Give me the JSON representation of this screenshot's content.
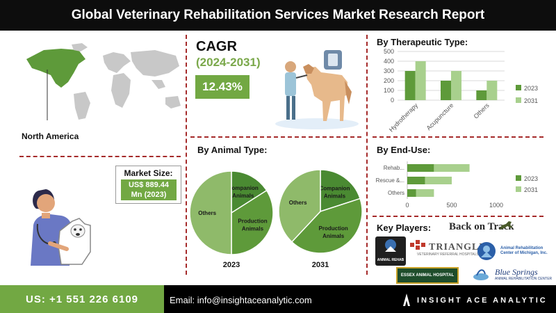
{
  "header": {
    "title": "Global Veterinary Rehabilitation Services Market Research Report"
  },
  "region": {
    "label": "North America"
  },
  "cagr": {
    "label": "CAGR",
    "years": "(2024-2031)",
    "value": "12.43%"
  },
  "market_size": {
    "label": "Market Size:",
    "value_line1": "US$ 889.44",
    "value_line2": "Mn (2023)"
  },
  "sections": {
    "therapeutic": "By Therapeutic Type:",
    "animal": "By Animal Type:",
    "enduse": "By End-Use:",
    "players": "Key Players:"
  },
  "footer": {
    "phone": "US: +1 551 226 6109",
    "email": "Email: info@insightaceanalytic.com",
    "brand": "INSIGHT ACE ANALYTIC"
  },
  "key_players": [
    "Back on Track",
    "TRIANGLE",
    "VETERINARY REFERRAL HOSPITALS",
    "Animal Rehabilitation Center of Michigan, Inc.",
    "ANIMAL REHAB",
    "ESSEX ANIMAL HOSPITAL",
    "Blue Springs",
    "ANIMAL REHABILITATION CENTER"
  ],
  "colors": {
    "dark_green": "#5e9a3a",
    "light_green": "#a8d08d",
    "accent_green": "#72a843",
    "divider": "#a52a2a"
  },
  "chart_data": [
    {
      "type": "bar",
      "title": "By Therapeutic Type:",
      "categories": [
        "Hydrotherapy",
        "Acupuncture",
        "Others"
      ],
      "series": [
        {
          "name": "2023",
          "values": [
            300,
            200,
            100
          ]
        },
        {
          "name": "2031",
          "values": [
            400,
            300,
            200
          ]
        }
      ],
      "ylim": [
        0,
        500
      ],
      "yticks": [
        0,
        100,
        200,
        300,
        400,
        500
      ],
      "legend": "right"
    },
    {
      "type": "pie",
      "title": "By Animal Type:",
      "year": "2023",
      "slices": [
        {
          "label": "Companion Animals",
          "value": 16
        },
        {
          "label": "Production Animals",
          "value": 34
        },
        {
          "label": "Others",
          "value": 50
        }
      ]
    },
    {
      "type": "pie",
      "year": "2031",
      "slices": [
        {
          "label": "Companion Animals",
          "value": 20
        },
        {
          "label": "Production Animals",
          "value": 42
        },
        {
          "label": "Others",
          "value": 38
        }
      ]
    },
    {
      "type": "bar",
      "orientation": "horizontal",
      "stacked": true,
      "title": "By End-Use:",
      "categories": [
        "Rehab...",
        "Rescue &...",
        "Others"
      ],
      "series": [
        {
          "name": "2023",
          "values": [
            300,
            200,
            100
          ]
        },
        {
          "name": "2031",
          "values": [
            400,
            300,
            200
          ]
        }
      ],
      "xlim": [
        0,
        1000
      ],
      "xticks": [
        0,
        500,
        1000
      ],
      "legend": "right"
    }
  ]
}
